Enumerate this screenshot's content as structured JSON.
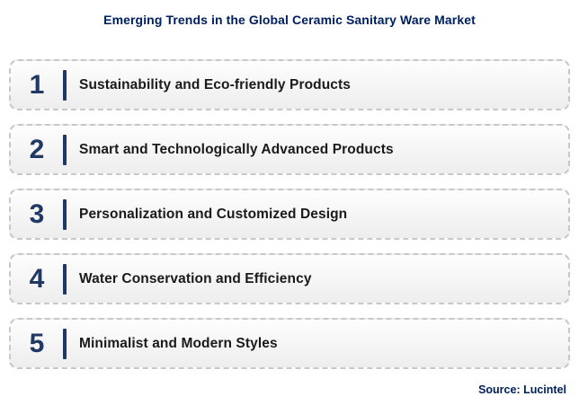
{
  "title": "Emerging Trends in the Global Ceramic Sanitary Ware Market",
  "items": [
    {
      "number": "1",
      "label": "Sustainability and Eco-friendly Products"
    },
    {
      "number": "2",
      "label": "Smart and Technologically Advanced Products"
    },
    {
      "number": "3",
      "label": "Personalization and Customized Design"
    },
    {
      "number": "4",
      "label": "Water Conservation and Efficiency"
    },
    {
      "number": "5",
      "label": "Minimalist and Modern Styles"
    }
  ],
  "source": "Source: Lucintel",
  "colors": {
    "title-color": "#002060",
    "accent": "#1F3864",
    "label-color": "#1A1A1A",
    "border-color": "#C8C8C8"
  }
}
